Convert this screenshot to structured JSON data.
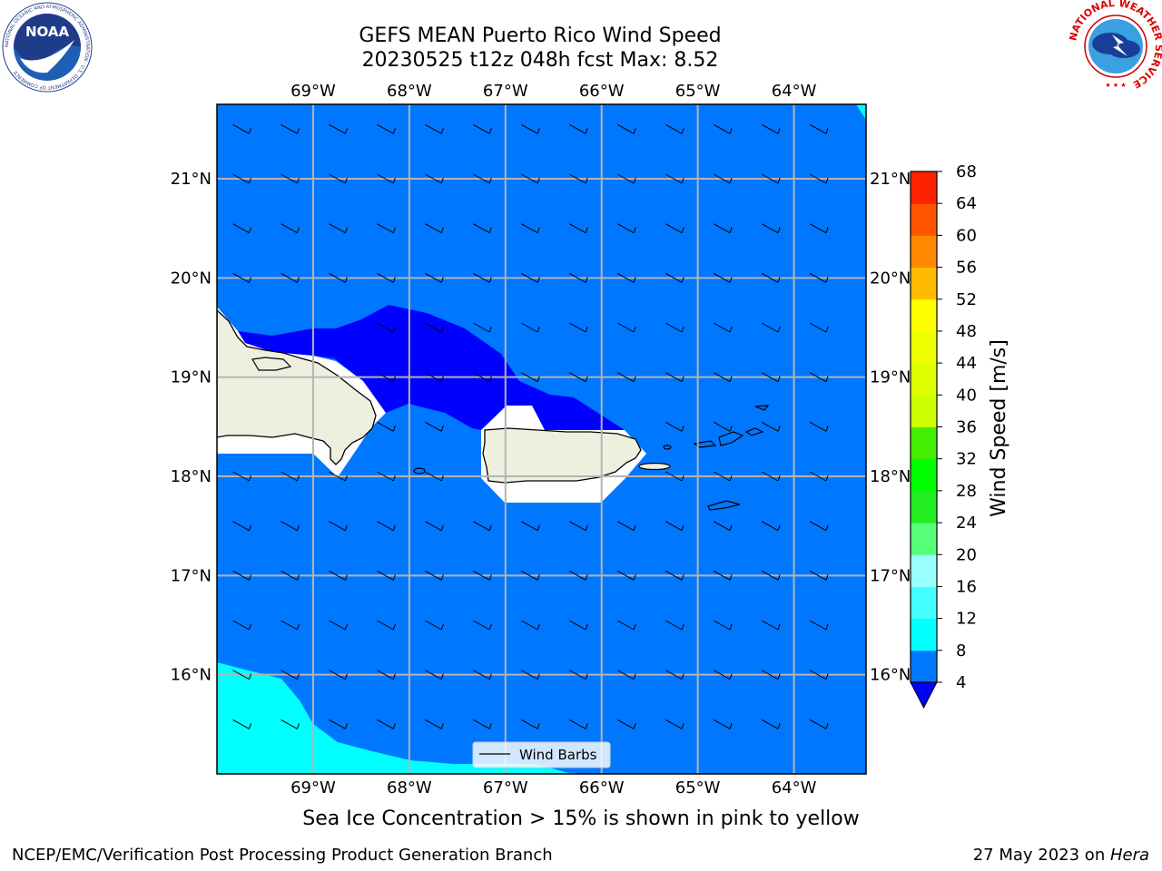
{
  "title": {
    "line1": "GEFS MEAN Puerto Rico Wind Speed",
    "line2": "20230525 t12z 048h fcst   Max: 8.52"
  },
  "logos": {
    "left_icon": "noaa-logo",
    "left_text": "NOAA",
    "left_ring_text": "NATIONAL OCEANIC AND ATMOSPHERIC ADMINISTRATION · U.S. DEPARTMENT OF COMMERCE",
    "right_icon": "nws-logo",
    "right_ring_text": "NATIONAL WEATHER SERVICE"
  },
  "map": {
    "lon_labels": [
      "69°W",
      "68°W",
      "67°W",
      "66°W",
      "65°W",
      "64°W"
    ],
    "lat_labels": [
      "21°N",
      "20°N",
      "19°N",
      "18°N",
      "17°N",
      "16°N"
    ],
    "extent": {
      "lon_min": -70.0,
      "lon_max": -63.25,
      "lat_min": 15.0,
      "lat_max": 21.75
    },
    "barb_spacing_deg": 0.5,
    "barb_direction_from": "east-southeast",
    "land_color": "#efefe0",
    "fill_colors": {
      "lt4": "#0000ff",
      "4to8": "#0077ff",
      "8to12": "#00ffff"
    },
    "legend_label": "Wind Barbs"
  },
  "colorbar": {
    "label": "Wind Speed [m/s]",
    "ticks": [
      4,
      8,
      12,
      16,
      20,
      24,
      28,
      32,
      36,
      40,
      44,
      48,
      52,
      56,
      60,
      64,
      68
    ],
    "under_color": "#0000ff",
    "colors": [
      "#0077ff",
      "#00ffff",
      "#44ffff",
      "#99ffff",
      "#55ff77",
      "#22ee22",
      "#00ff00",
      "#44ee00",
      "#ccff00",
      "#ddff00",
      "#eeff00",
      "#ffff00",
      "#ffbb00",
      "#ff8800",
      "#ff5500",
      "#ff2200",
      "#ff0000"
    ]
  },
  "subnote": "Sea Ice Concentration > 15% is shown in pink to yellow",
  "footer": {
    "left": "NCEP/EMC/Verification Post Processing Product Generation Branch",
    "right_prefix": "27 May 2023 on ",
    "right_machine": "Hera"
  }
}
